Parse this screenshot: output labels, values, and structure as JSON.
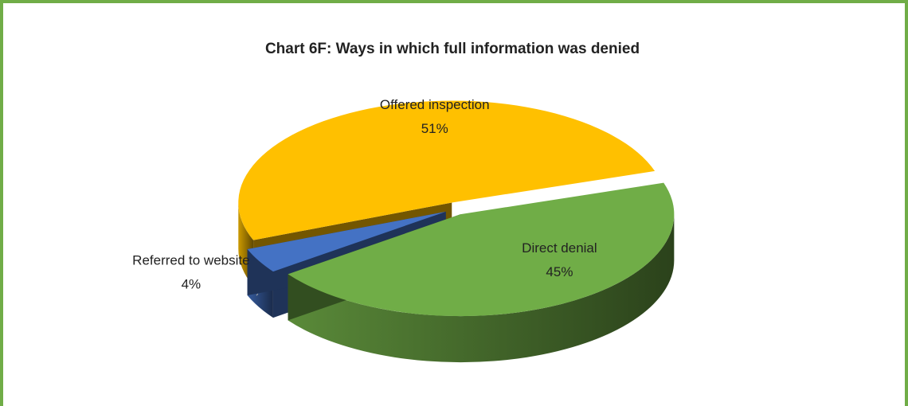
{
  "chart_data": {
    "type": "pie",
    "title": "Chart 6F: Ways in which full information was denied",
    "categories": [
      "Direct denial",
      "Referred to website",
      "Offered inspection"
    ],
    "values": [
      45,
      4,
      51
    ],
    "value_labels": [
      "45%",
      "4%",
      "51%"
    ],
    "colors": [
      "#70ad47",
      "#4472c4",
      "#ffc000"
    ],
    "three_d": true
  }
}
